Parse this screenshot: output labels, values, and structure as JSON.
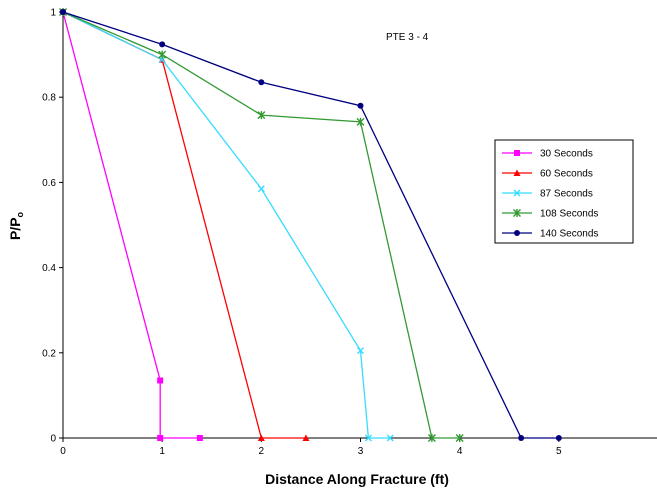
{
  "chart_data": {
    "type": "line",
    "title": "",
    "annotation": "PTE 3 - 4",
    "xlabel": "Distance Along Fracture (ft)",
    "ylabel_main": "P/P",
    "ylabel_sub": "o",
    "xlim": [
      0,
      6
    ],
    "ylim": [
      0,
      1
    ],
    "x_ticks": [
      0,
      1,
      2,
      3,
      4,
      5
    ],
    "y_ticks": [
      0,
      0.2,
      0.4,
      0.6,
      0.8,
      1
    ],
    "x_tick_labels": [
      "0",
      "1",
      "2",
      "3",
      "4",
      "5"
    ],
    "y_tick_labels": [
      "0",
      "0.2",
      "0.4",
      "0.6",
      "0.8",
      "1"
    ],
    "grid": false,
    "legend_position": "right",
    "series": [
      {
        "name": "30 Seconds",
        "color": "#ff00ff",
        "marker": "square",
        "points": [
          [
            0,
            1
          ],
          [
            0.98,
            0.135
          ],
          [
            0.98,
            0
          ],
          [
            1.38,
            0
          ]
        ]
      },
      {
        "name": "60 Seconds",
        "color": "#ff0000",
        "marker": "triangle",
        "points": [
          [
            0,
            1
          ],
          [
            1.0,
            0.888
          ],
          [
            2.0,
            0
          ],
          [
            2.45,
            0
          ]
        ]
      },
      {
        "name": "87 Seconds",
        "color": "#33ddff",
        "marker": "x",
        "points": [
          [
            0,
            1
          ],
          [
            1.0,
            0.888
          ],
          [
            2.0,
            0.585
          ],
          [
            3.0,
            0.205
          ],
          [
            3.08,
            0
          ],
          [
            3.3,
            0
          ]
        ]
      },
      {
        "name": "108 Seconds",
        "color": "#339933",
        "marker": "asterisk",
        "points": [
          [
            0,
            1
          ],
          [
            1.0,
            0.9
          ],
          [
            2.0,
            0.758
          ],
          [
            3.0,
            0.742
          ],
          [
            3.72,
            0
          ],
          [
            4.0,
            0
          ]
        ]
      },
      {
        "name": "140 Seconds",
        "color": "#000080",
        "marker": "circle",
        "points": [
          [
            0,
            1
          ],
          [
            1.0,
            0.924
          ],
          [
            2.0,
            0.835
          ],
          [
            3.0,
            0.78
          ],
          [
            4.62,
            0
          ],
          [
            5.0,
            0
          ]
        ]
      }
    ]
  }
}
